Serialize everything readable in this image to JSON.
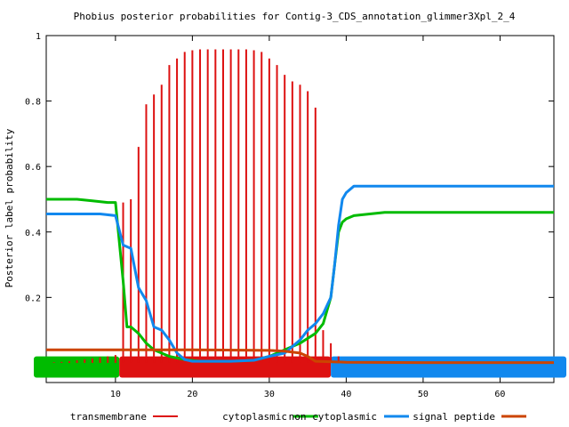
{
  "chart_data": {
    "type": "line",
    "title": "Phobius posterior probabilities for Contig-3_CDS_annotation_glimmer3Xpl_2_4",
    "xlabel": "",
    "ylabel": "Posterior label probability",
    "xlim": [
      1,
      67
    ],
    "ylim": [
      -0.06,
      1.0
    ],
    "x_ticks": [
      10,
      20,
      30,
      40,
      50,
      60
    ],
    "y_ticks": [
      0.2,
      0.4,
      0.6,
      0.8,
      1
    ],
    "y_tick_labels": [
      "0.2",
      "0.4",
      "0.6",
      "0.8",
      "1"
    ],
    "x_tick_labels": [
      "10",
      "20",
      "30",
      "40",
      "50",
      "60"
    ],
    "legend_position": "bottom",
    "series": [
      {
        "name": "transmembrane",
        "color": "#dd1111",
        "style": "impulses",
        "x": [
          2,
          3,
          4,
          5,
          6,
          7,
          8,
          9,
          10,
          11,
          12,
          13,
          14,
          15,
          16,
          17,
          18,
          19,
          20,
          21,
          22,
          23,
          24,
          25,
          26,
          27,
          28,
          29,
          30,
          31,
          32,
          33,
          34,
          35,
          36,
          37,
          38,
          39,
          40,
          41
        ],
        "values": [
          0.002,
          0.003,
          0.005,
          0.008,
          0.011,
          0.014,
          0.017,
          0.02,
          0.024,
          0.49,
          0.5,
          0.66,
          0.79,
          0.82,
          0.85,
          0.91,
          0.93,
          0.95,
          0.955,
          0.958,
          0.958,
          0.958,
          0.958,
          0.958,
          0.958,
          0.958,
          0.955,
          0.95,
          0.93,
          0.91,
          0.88,
          0.86,
          0.85,
          0.83,
          0.78,
          0.1,
          0.06,
          0.02,
          0.005,
          0.001
        ]
      },
      {
        "name": "cytoplasmic",
        "color": "#00bb00",
        "style": "line",
        "x": [
          1,
          5,
          7,
          9,
          10,
          11,
          11.5,
          12,
          13,
          14,
          15,
          17,
          19,
          21,
          25,
          28,
          30,
          32,
          34,
          36,
          37,
          38,
          38.5,
          39,
          39.5,
          40,
          41,
          45,
          50,
          55,
          60,
          67
        ],
        "values": [
          0.5,
          0.5,
          0.495,
          0.49,
          0.49,
          0.25,
          0.11,
          0.11,
          0.09,
          0.06,
          0.04,
          0.02,
          0.01,
          0.005,
          0.005,
          0.008,
          0.02,
          0.04,
          0.06,
          0.09,
          0.12,
          0.2,
          0.3,
          0.4,
          0.43,
          0.44,
          0.45,
          0.46,
          0.46,
          0.46,
          0.46,
          0.46
        ]
      },
      {
        "name": "non cytoplasmic",
        "color": "#1188ee",
        "style": "line",
        "x": [
          1,
          5,
          8,
          10,
          11,
          12,
          13,
          14,
          15,
          16,
          17,
          18,
          19,
          20,
          25,
          28,
          30,
          32,
          34,
          35,
          36,
          37,
          38,
          38.5,
          39,
          39.5,
          40,
          41,
          45,
          50,
          55,
          60,
          67
        ],
        "values": [
          0.455,
          0.455,
          0.455,
          0.45,
          0.36,
          0.35,
          0.23,
          0.19,
          0.11,
          0.1,
          0.07,
          0.03,
          0.01,
          0.005,
          0.005,
          0.008,
          0.02,
          0.03,
          0.07,
          0.1,
          0.12,
          0.15,
          0.2,
          0.3,
          0.42,
          0.5,
          0.52,
          0.54,
          0.54,
          0.54,
          0.54,
          0.54,
          0.54
        ]
      },
      {
        "name": "signal peptide",
        "color": "#cc4400",
        "style": "line",
        "x": [
          1,
          10,
          20,
          30,
          32,
          34,
          35,
          36,
          40,
          50,
          67
        ],
        "values": [
          0.04,
          0.04,
          0.04,
          0.038,
          0.036,
          0.03,
          0.02,
          0.005,
          0.002,
          0.001,
          0.001
        ]
      }
    ],
    "topology": {
      "segments": [
        {
          "label": "cytoplasmic",
          "start": 1,
          "end": 10.5,
          "color": "#00bb00"
        },
        {
          "label": "transmembrane",
          "start": 10.5,
          "end": 38,
          "color": "#dd1111"
        },
        {
          "label": "non cytoplasmic",
          "start": 38,
          "end": 67,
          "color": "#1188ee"
        }
      ]
    }
  }
}
